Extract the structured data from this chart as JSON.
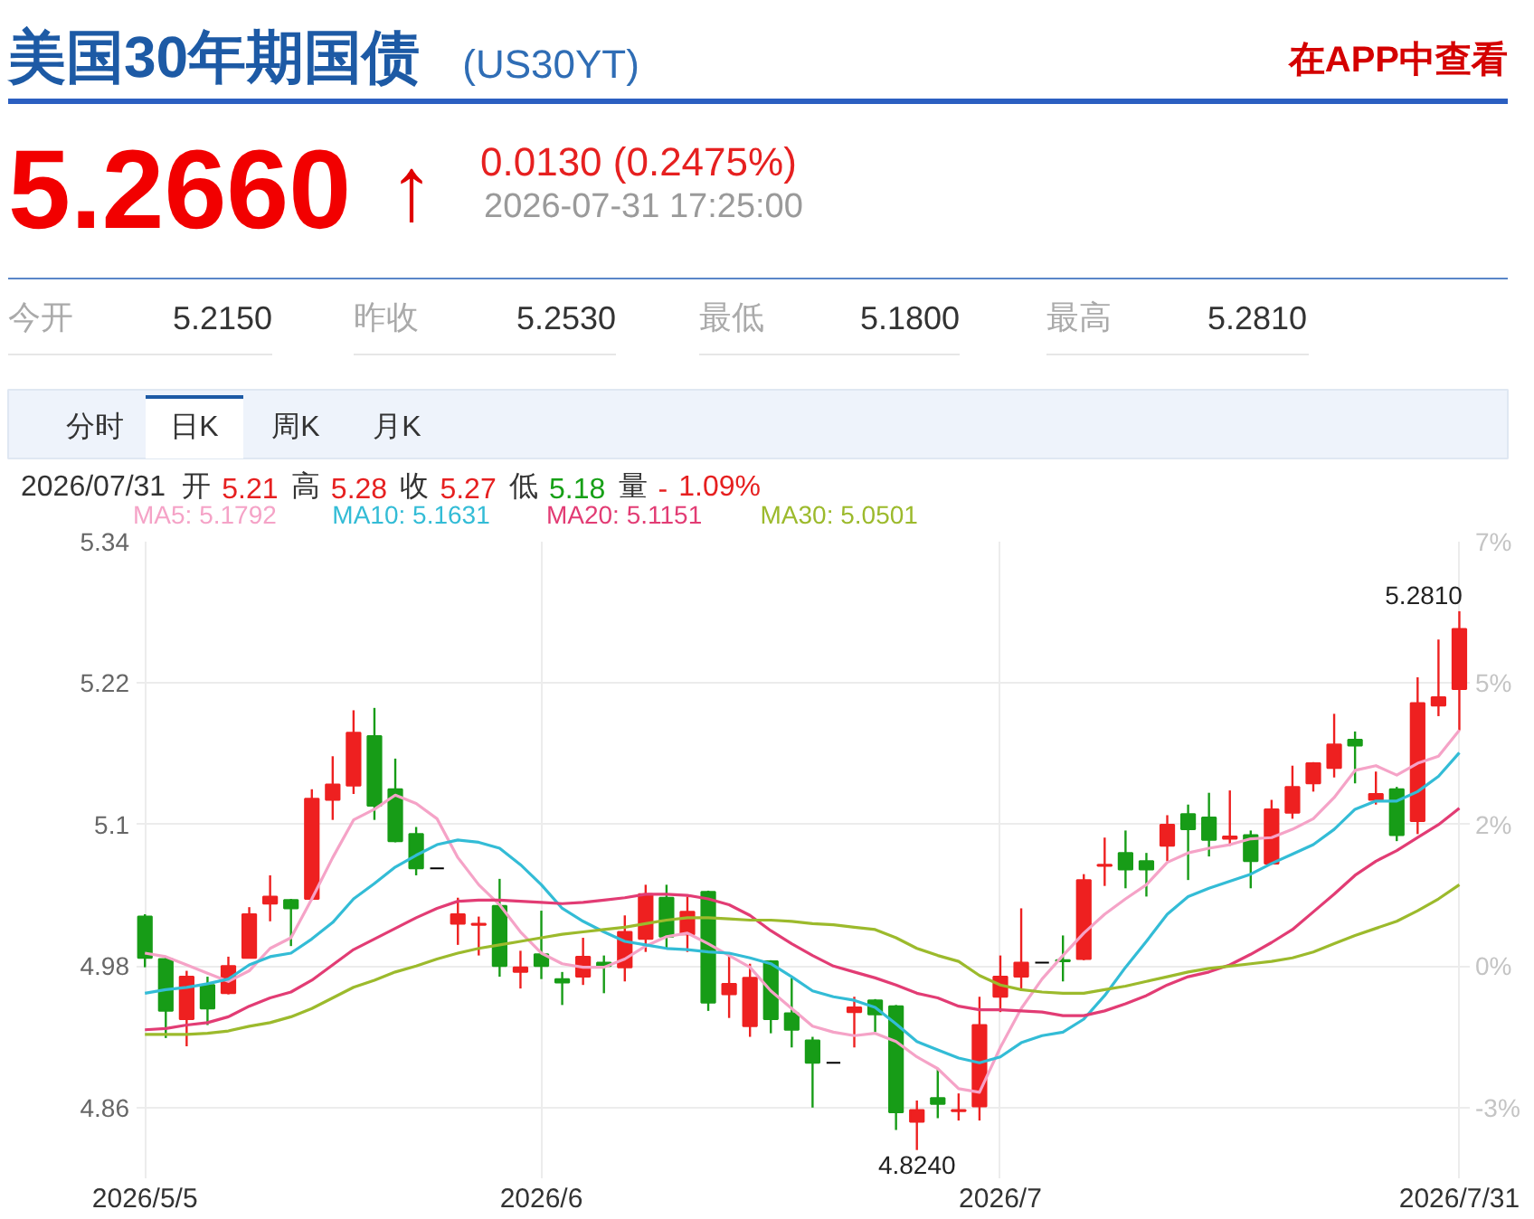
{
  "chart_data": {
    "type": "candlestick",
    "title": "美国30年期国债",
    "subtitle": "(US30YT)",
    "categories": [
      "2026/5/5",
      null,
      null,
      null,
      null,
      null,
      null,
      null,
      null,
      null,
      null,
      null,
      null,
      null,
      null,
      null,
      null,
      null,
      null,
      "2026/6",
      null,
      null,
      null,
      null,
      null,
      null,
      null,
      null,
      null,
      null,
      null,
      null,
      null,
      null,
      null,
      null,
      null,
      null,
      null,
      null,
      null,
      "2026/7",
      null,
      null,
      null,
      null,
      null,
      null,
      null,
      null,
      null,
      null,
      null,
      null,
      null,
      null,
      null,
      null,
      null,
      null,
      null,
      null,
      null,
      "2026/7/31"
    ],
    "ohlc": [
      [
        5.022,
        5.024,
        4.979,
        4.987
      ],
      [
        4.986,
        4.988,
        4.919,
        4.942
      ],
      [
        4.935,
        4.976,
        4.912,
        4.971
      ],
      [
        4.964,
        4.971,
        4.93,
        4.944
      ],
      [
        4.957,
        4.988,
        4.956,
        4.98
      ],
      [
        4.987,
        5.03,
        4.987,
        5.024
      ],
      [
        5.033,
        5.057,
        5.018,
        5.039
      ],
      [
        5.036,
        5.037,
        4.997,
        5.029
      ],
      [
        5.037,
        5.13,
        5.036,
        5.122
      ],
      [
        5.121,
        5.158,
        5.104,
        5.134
      ],
      [
        5.133,
        5.197,
        5.126,
        5.178
      ],
      [
        5.175,
        5.199,
        5.104,
        5.116
      ],
      [
        5.13,
        5.156,
        5.085,
        5.086
      ],
      [
        5.092,
        5.098,
        5.057,
        5.063
      ],
      [
        5.063,
        5.063,
        5.063,
        5.063
      ],
      [
        5.016,
        5.038,
        4.998,
        5.024
      ],
      [
        5.015,
        5.022,
        4.989,
        5.016
      ],
      [
        5.031,
        5.054,
        4.971,
        4.98
      ],
      [
        4.975,
        4.993,
        4.961,
        4.979
      ],
      [
        4.99,
        5.027,
        4.969,
        4.98
      ],
      [
        4.969,
        4.975,
        4.947,
        4.966
      ],
      [
        4.971,
        5.004,
        4.964,
        4.988
      ],
      [
        4.983,
        4.989,
        4.957,
        4.98
      ],
      [
        4.979,
        5.023,
        4.967,
        5.009
      ],
      [
        5.003,
        5.049,
        4.992,
        5.041
      ],
      [
        5.038,
        5.049,
        4.995,
        5.005
      ],
      [
        5.007,
        5.039,
        4.992,
        5.026
      ],
      [
        5.043,
        5.044,
        4.942,
        4.949
      ],
      [
        4.956,
        4.99,
        4.936,
        4.965
      ],
      [
        4.929,
        4.982,
        4.92,
        4.97
      ],
      [
        4.984,
        4.985,
        4.923,
        4.935
      ],
      [
        4.94,
        4.97,
        4.911,
        4.926
      ],
      [
        4.917,
        4.92,
        4.86,
        4.898
      ],
      [
        4.898,
        4.898,
        4.898,
        4.898
      ],
      [
        4.941,
        4.954,
        4.911,
        4.945
      ],
      [
        4.951,
        4.952,
        4.924,
        4.939
      ],
      [
        4.946,
        4.947,
        4.841,
        4.856
      ],
      [
        4.848,
        4.866,
        4.824,
        4.858
      ],
      [
        4.868,
        4.893,
        4.851,
        4.863
      ],
      [
        4.857,
        4.872,
        4.849,
        4.858
      ],
      [
        4.861,
        4.954,
        4.849,
        4.93
      ],
      [
        4.954,
        4.989,
        4.941,
        4.971
      ],
      [
        4.971,
        5.029,
        4.959,
        4.983
      ],
      [
        4.983,
        4.983,
        4.983,
        4.983
      ],
      [
        4.985,
        5.006,
        4.967,
        4.984
      ],
      [
        4.986,
        5.058,
        4.985,
        5.053
      ],
      [
        5.065,
        5.089,
        5.048,
        5.066
      ],
      [
        5.076,
        5.095,
        5.046,
        5.062
      ],
      [
        5.069,
        5.076,
        5.039,
        5.062
      ],
      [
        5.082,
        5.108,
        5.069,
        5.1
      ],
      [
        5.109,
        5.117,
        5.053,
        5.096
      ],
      [
        5.106,
        5.127,
        5.073,
        5.087
      ],
      [
        5.088,
        5.129,
        5.082,
        5.09
      ],
      [
        5.091,
        5.095,
        5.046,
        5.069
      ],
      [
        5.067,
        5.121,
        5.066,
        5.113
      ],
      [
        5.11,
        5.15,
        5.105,
        5.132
      ],
      [
        5.135,
        5.153,
        5.128,
        5.152
      ],
      [
        5.148,
        5.194,
        5.14,
        5.168
      ],
      [
        5.172,
        5.179,
        5.135,
        5.167
      ],
      [
        5.121,
        5.145,
        5.117,
        5.126
      ],
      [
        5.13,
        5.132,
        5.086,
        5.091
      ],
      [
        5.103,
        5.225,
        5.092,
        5.203
      ],
      [
        5.201,
        5.257,
        5.192,
        5.208
      ],
      [
        5.215,
        5.281,
        5.18,
        5.266
      ]
    ],
    "colors": [
      "#179c17",
      "#179c17",
      "#ee2020",
      "#179c17",
      "#ee2020",
      "#ee2020",
      "#ee2020",
      "#179c17",
      "#ee2020",
      "#ee2020",
      "#ee2020",
      "#179c17",
      "#179c17",
      "#179c17",
      "#000000",
      "#ee2020",
      "#ee2020",
      "#179c17",
      "#ee2020",
      "#179c17",
      "#179c17",
      "#ee2020",
      "#179c17",
      "#ee2020",
      "#ee2020",
      "#179c17",
      "#ee2020",
      "#179c17",
      "#ee2020",
      "#ee2020",
      "#179c17",
      "#179c17",
      "#179c17",
      "#000000",
      "#ee2020",
      "#179c17",
      "#179c17",
      "#ee2020",
      "#179c17",
      "#ee2020",
      "#ee2020",
      "#ee2020",
      "#ee2020",
      "#000000",
      "#179c17",
      "#ee2020",
      "#ee2020",
      "#179c17",
      "#179c17",
      "#ee2020",
      "#179c17",
      "#179c17",
      "#ee2020",
      "#179c17",
      "#ee2020",
      "#ee2020",
      "#ee2020",
      "#ee2020",
      "#179c17",
      "#ee2020",
      "#179c17",
      "#ee2020",
      "#ee2020",
      "#ee2020"
    ],
    "series": [
      {
        "name": "MA5: 5.1792",
        "type": "line",
        "color": "#f5a3c7",
        "values": [
          4.991,
          4.988,
          4.981,
          4.974,
          4.967,
          4.976,
          4.995,
          5.004,
          5.037,
          5.072,
          5.104,
          5.113,
          5.125,
          5.118,
          5.105,
          5.072,
          5.049,
          5.032,
          5.009,
          4.991,
          4.982,
          4.979,
          4.979,
          4.986,
          4.997,
          5.005,
          5.008,
          4.999,
          4.989,
          4.979,
          4.959,
          4.944,
          4.929,
          4.924,
          4.921,
          4.923,
          4.916,
          4.903,
          4.893,
          4.876,
          4.873,
          4.911,
          4.944,
          4.969,
          4.989,
          5.008,
          5.024,
          5.037,
          5.049,
          5.068,
          5.076,
          5.08,
          5.083,
          5.088,
          5.089,
          5.096,
          5.105,
          5.123,
          5.146,
          5.15,
          5.142,
          5.152,
          5.158,
          5.18
        ]
      },
      {
        "name": "MA10: 5.1631",
        "type": "line",
        "color": "#33bcd6",
        "values": [
          4.957,
          4.96,
          4.962,
          4.965,
          4.969,
          4.981,
          4.988,
          4.991,
          5.003,
          5.017,
          5.037,
          5.05,
          5.064,
          5.074,
          5.083,
          5.087,
          5.085,
          5.08,
          5.066,
          5.049,
          5.029,
          5.018,
          5.009,
          5.001,
          4.998,
          4.995,
          4.994,
          4.992,
          4.991,
          4.987,
          4.982,
          4.971,
          4.959,
          4.954,
          4.951,
          4.945,
          4.931,
          4.916,
          4.909,
          4.902,
          4.898,
          4.903,
          4.915,
          4.921,
          4.924,
          4.935,
          4.955,
          4.979,
          5.001,
          5.024,
          5.039,
          5.046,
          5.052,
          5.058,
          5.067,
          5.075,
          5.083,
          5.096,
          5.113,
          5.12,
          5.12,
          5.128,
          5.141,
          5.161
        ]
      },
      {
        "name": "MA20: 5.1151",
        "type": "line",
        "color": "#e23c74",
        "values": [
          4.926,
          4.927,
          4.93,
          4.932,
          4.937,
          4.946,
          4.953,
          4.958,
          4.968,
          4.981,
          4.994,
          5.003,
          5.012,
          5.021,
          5.029,
          5.035,
          5.036,
          5.036,
          5.035,
          5.034,
          5.033,
          5.034,
          5.036,
          5.038,
          5.041,
          5.041,
          5.04,
          5.037,
          5.032,
          5.023,
          5.01,
          4.999,
          4.989,
          4.98,
          4.975,
          4.97,
          4.964,
          4.957,
          4.953,
          4.946,
          4.943,
          4.943,
          4.942,
          4.941,
          4.938,
          4.938,
          4.942,
          4.948,
          4.955,
          4.964,
          4.971,
          4.975,
          4.981,
          4.99,
          5.0,
          5.011,
          5.026,
          5.041,
          5.057,
          5.069,
          5.078,
          5.089,
          5.1,
          5.114
        ]
      },
      {
        "name": "MA30: 5.0501",
        "type": "line",
        "color": "#9cba2c",
        "values": [
          4.922,
          4.922,
          4.922,
          4.923,
          4.925,
          4.929,
          4.932,
          4.937,
          4.944,
          4.953,
          4.962,
          4.968,
          4.975,
          4.98,
          4.986,
          4.991,
          4.995,
          4.998,
          5.001,
          5.004,
          5.007,
          5.009,
          5.011,
          5.013,
          5.016,
          5.019,
          5.021,
          5.021,
          5.02,
          5.019,
          5.019,
          5.018,
          5.016,
          5.015,
          5.013,
          5.011,
          5.004,
          4.995,
          4.989,
          4.984,
          4.972,
          4.964,
          4.96,
          4.958,
          4.957,
          4.957,
          4.96,
          4.963,
          4.967,
          4.971,
          4.975,
          4.978,
          4.98,
          4.982,
          4.984,
          4.987,
          4.992,
          4.999,
          5.006,
          5.012,
          5.018,
          5.027,
          5.037,
          5.049
        ]
      }
    ],
    "ylim": [
      4.8,
      5.34
    ],
    "yticks": [
      5.34,
      5.22,
      5.1,
      4.98,
      4.86
    ],
    "y2lim": [
      -3.8,
      7.02
    ],
    "y2ticks": [
      {
        "value": 7.02,
        "label": "7%"
      },
      {
        "value": 4.62,
        "label": "5%"
      },
      {
        "value": 2.21,
        "label": "2%"
      },
      {
        "value": -0.19,
        "label": "0%"
      },
      {
        "value": -2.6,
        "label": "-3%"
      }
    ],
    "grid": true,
    "annotations": [
      "在APP中查看",
      "5.2660",
      "↑",
      "0.0130 (0.2475%)",
      "2026-07-31 17:25:00",
      "今开",
      "5.2150",
      "昨收",
      "5.2530",
      "最低",
      "5.1800",
      "最高",
      "5.2810",
      "分时",
      "日K",
      "周K",
      "月K",
      "2026/07/31",
      "开",
      "5.21",
      "高",
      "5.28",
      "收",
      "5.27",
      "低",
      "5.18",
      "量",
      "-",
      "1.09%",
      {
        "text": "5.2810",
        "x": "2026/7/31",
        "y": 5.281
      },
      {
        "text": "4.8240",
        "y": 4.824
      }
    ]
  }
}
